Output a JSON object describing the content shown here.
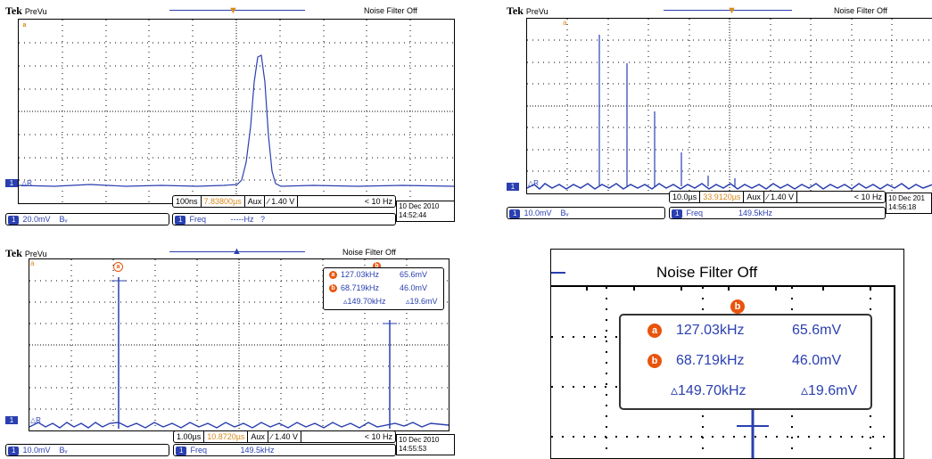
{
  "scope_top_left": {
    "brand": "Tek",
    "mode": "PreVu",
    "noise_filter": "Noise Filter Off",
    "cursor_a_marker": "a",
    "ref_label": "R",
    "timebase": "100ns",
    "trigger_pos": "7.83800µs",
    "trigger_src": "Aux",
    "trigger_level": "∕ 1.40 V",
    "trigger_freq": "< 10 Hz",
    "ch1_label": "1",
    "ch1_scale": "20.0mV",
    "ch1_bw": "Bᵥ",
    "freq_badge": "1",
    "freq_label": "Freq",
    "freq_value": "-----Hz",
    "freq_flag": "?",
    "date": "10 Dec  2010",
    "time": "14:52:44"
  },
  "scope_top_right": {
    "brand": "Tek",
    "mode": "PreVu",
    "noise_filter": "Noise Filter Off",
    "cursor_a_marker": "a",
    "ref_label": "R",
    "timebase": "10.0µs",
    "trigger_pos": "33.9120µs",
    "trigger_src": "Aux",
    "trigger_level": "∕ 1.40 V",
    "trigger_freq": "< 10 Hz",
    "ch1_label": "1",
    "ch1_scale": "10.0mV",
    "ch1_bw": "Bᵥ",
    "freq_badge": "1",
    "freq_label": "Freq",
    "freq_value": "149.5kHz",
    "date": "10 Dec  201",
    "time": "14:56:18"
  },
  "scope_bottom_left": {
    "brand": "Tek",
    "mode": "PreVu",
    "noise_filter": "Noise Filter Off",
    "cursor_a_marker": "a",
    "cursor_b_marker": "b",
    "ref_label": "R",
    "cursor_a_freq": "127.03kHz",
    "cursor_a_volt": "65.6mV",
    "cursor_b_freq": "68.719kHz",
    "cursor_b_volt": "46.0mV",
    "delta_freq": "▵149.70kHz",
    "delta_volt": "▵19.6mV",
    "timebase": "1.00µs",
    "trigger_pos": "10.8720µs",
    "trigger_src": "Aux",
    "trigger_level": "∕ 1.40 V",
    "trigger_freq": "< 10 Hz",
    "ch1_label": "1",
    "ch1_scale": "10.0mV",
    "ch1_bw": "Bᵥ",
    "freq_badge": "1",
    "freq_label": "Freq",
    "freq_value": "149.5kHz",
    "date": "10 Dec  2010",
    "time": "14:55:53"
  },
  "zoom_panel": {
    "noise_filter": "Noise Filter Off",
    "cursor_b_marker": "b",
    "cursor_a_marker": "a",
    "cursor_a_freq": "127.03kHz",
    "cursor_a_volt": "65.6mV",
    "cursor_b_freq": "68.719kHz",
    "cursor_b_volt": "46.0mV",
    "delta_freq": "▵149.70kHz",
    "delta_volt": "▵19.6mV"
  },
  "colors": {
    "trace": "#2a3fb0",
    "cursor": "#e9540d",
    "trigger": "#d88a1c"
  }
}
